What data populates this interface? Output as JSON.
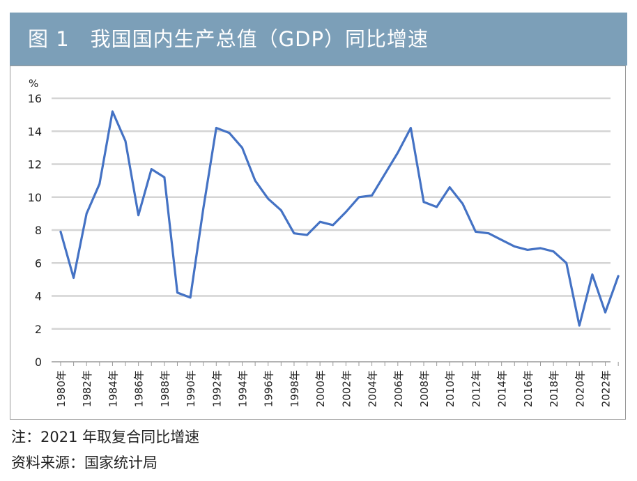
{
  "title": "图 1　我国国内生产总值（GDP）同比增速",
  "notes": {
    "note": "注：2021 年取复合同比增速",
    "source": "资料来源：国家统计局"
  },
  "chart_data": {
    "type": "line",
    "title": "图 1　我国国内生产总值（GDP）同比增速",
    "ylabel": "%",
    "xlabel": "",
    "ylim": [
      0,
      16
    ],
    "yticks": [
      0,
      2,
      4,
      6,
      8,
      10,
      12,
      14,
      16
    ],
    "grid": true,
    "line_color": "#4472c4",
    "x": [
      1980,
      1981,
      1982,
      1983,
      1984,
      1985,
      1986,
      1987,
      1988,
      1989,
      1990,
      1991,
      1992,
      1993,
      1994,
      1995,
      1996,
      1997,
      1998,
      1999,
      2000,
      2001,
      2002,
      2003,
      2004,
      2005,
      2006,
      2007,
      2008,
      2009,
      2010,
      2011,
      2012,
      2013,
      2014,
      2015,
      2016,
      2017,
      2018,
      2019,
      2020,
      2021,
      2022,
      2023
    ],
    "xtick_labels": [
      "1980年",
      "1982年",
      "1984年",
      "1986年",
      "1988年",
      "1990年",
      "1992年",
      "1994年",
      "1996年",
      "1998年",
      "2000年",
      "2002年",
      "2004年",
      "2006年",
      "2008年",
      "2010年",
      "2012年",
      "2014年",
      "2016年",
      "2018年",
      "2020年",
      "2022年"
    ],
    "xtick_years": [
      1980,
      1982,
      1984,
      1986,
      1988,
      1990,
      1992,
      1994,
      1996,
      1998,
      2000,
      2002,
      2004,
      2006,
      2008,
      2010,
      2012,
      2014,
      2016,
      2018,
      2020,
      2022
    ],
    "series": [
      {
        "values": [
          7.9,
          5.1,
          9.0,
          10.8,
          15.2,
          13.4,
          8.9,
          11.7,
          11.2,
          4.2,
          3.9,
          9.3,
          14.2,
          13.9,
          13.0,
          11.0,
          9.9,
          9.2,
          7.8,
          7.7,
          8.5,
          8.3,
          9.1,
          10.0,
          10.1,
          11.4,
          12.7,
          14.2,
          9.7,
          9.4,
          10.6,
          9.6,
          7.9,
          7.8,
          7.4,
          7.0,
          6.8,
          6.9,
          6.7,
          6.0,
          2.2,
          5.3,
          3.0,
          5.2
        ]
      }
    ]
  }
}
